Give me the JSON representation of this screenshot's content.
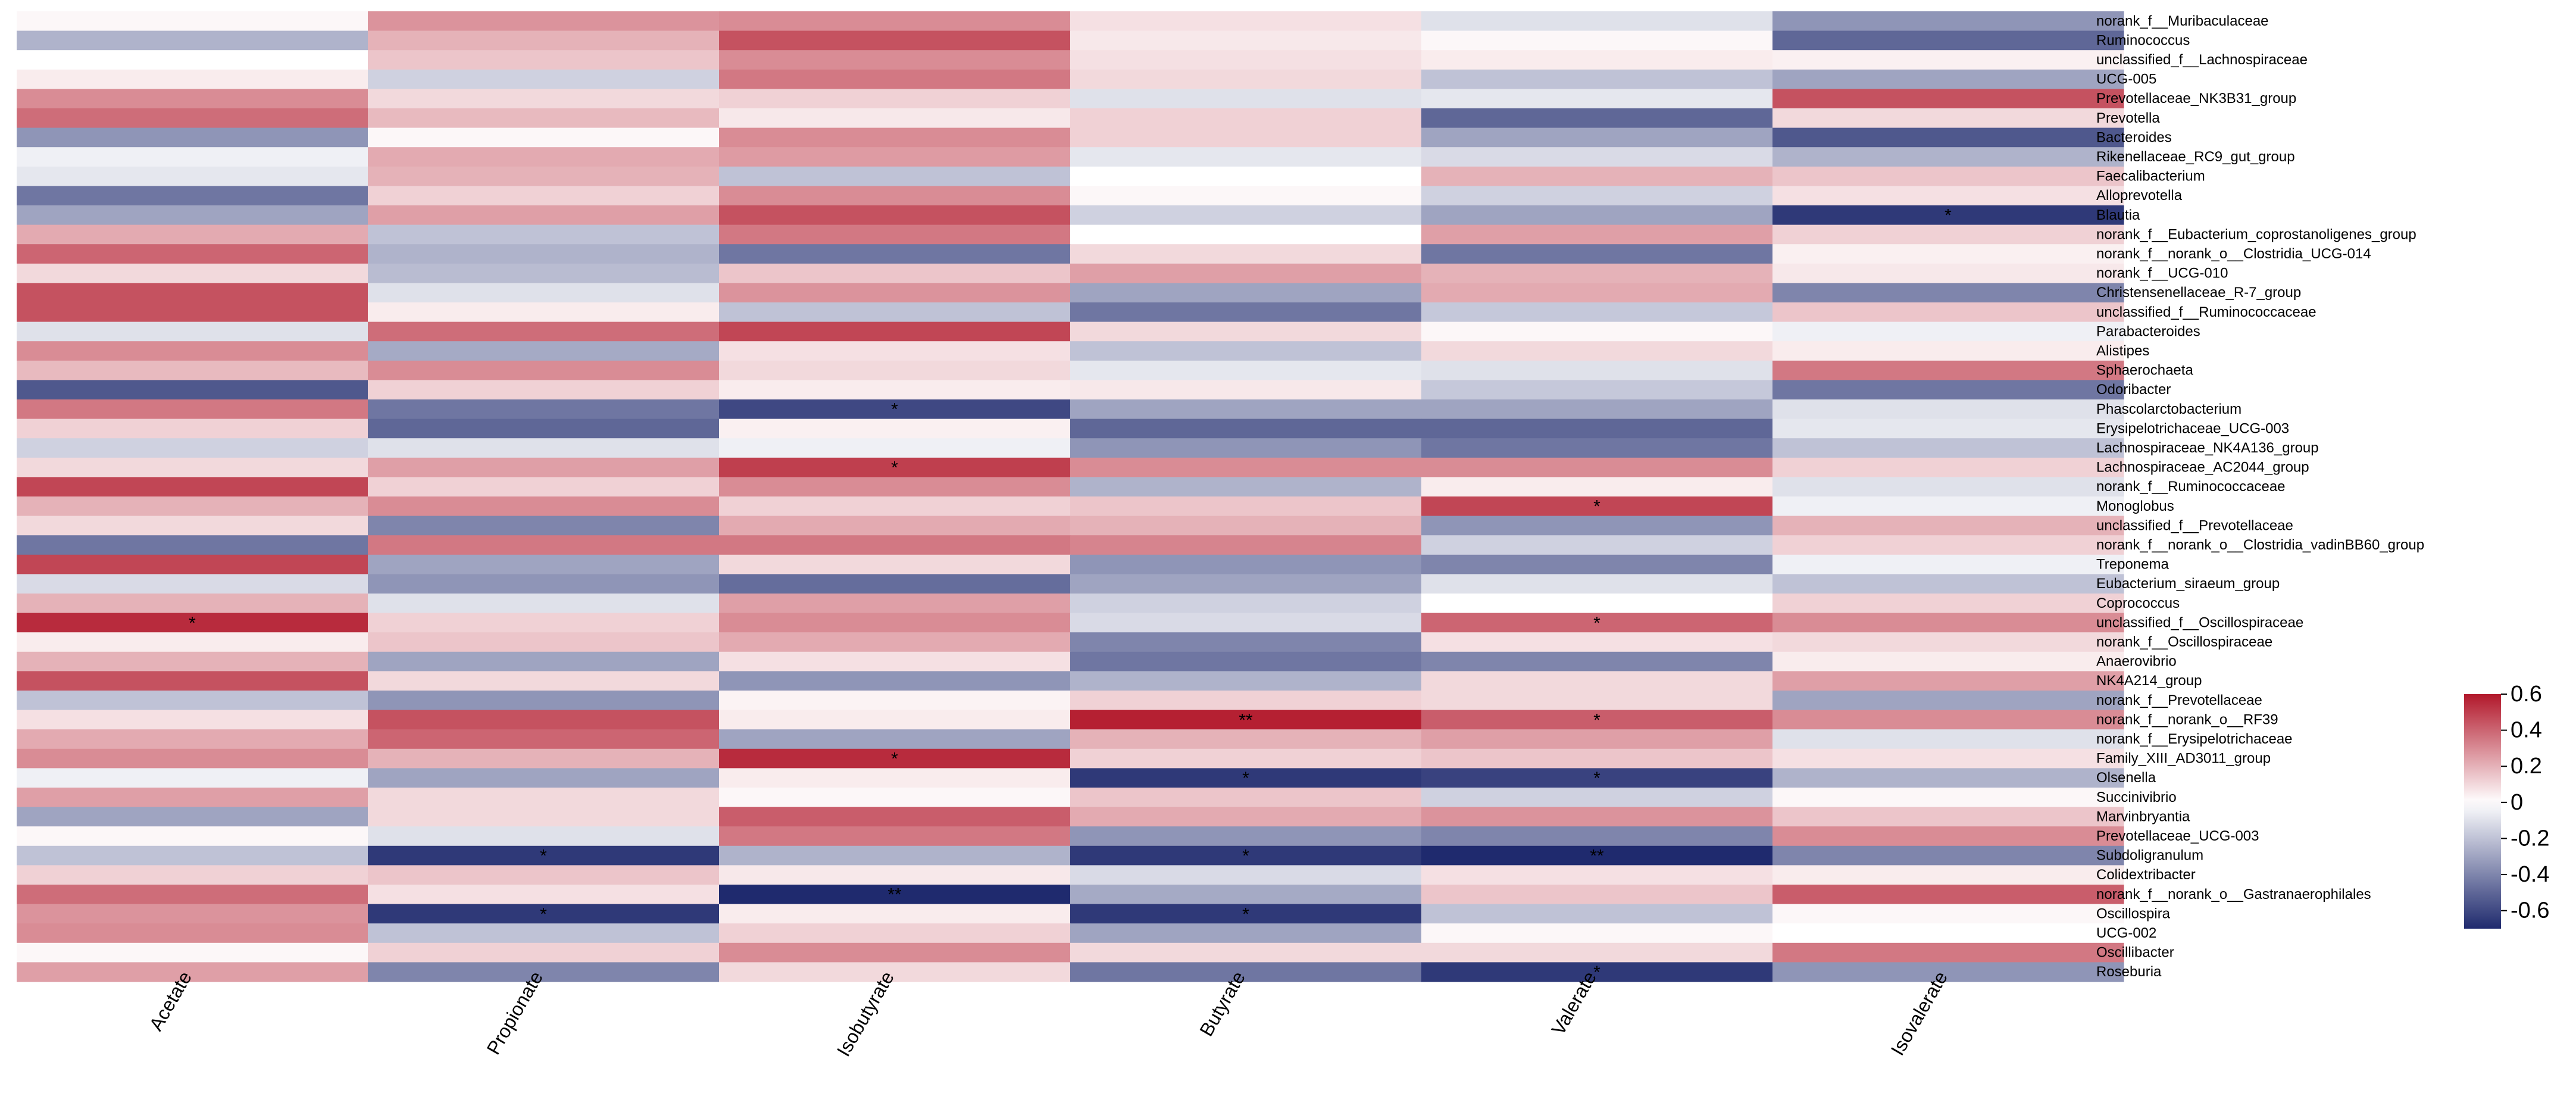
{
  "chart_data": {
    "type": "heatmap",
    "title": "",
    "xlabel": "",
    "ylabel": "",
    "colorbar": {
      "min": -0.7,
      "max": 0.6,
      "ticks": [
        0.6,
        0.4,
        0.2,
        0,
        -0.2,
        -0.4,
        -0.6
      ],
      "tick_labels": [
        "0.6",
        "0.4",
        "0.2",
        "0",
        "-0.2",
        "-0.4",
        "-0.6"
      ],
      "low_color": "#1f2a6e",
      "mid_color": "#ffffff",
      "high_color": "#b2182b"
    },
    "columns": [
      "Acetate",
      "Propionate",
      "Isobutyrate",
      "Butyrate",
      "Valerate",
      "Isovalerate"
    ],
    "rows": [
      "norank_f__Muribaculaceae",
      "Ruminococcus",
      "unclassified_f__Lachnospiraceae",
      "UCG-005",
      "Prevotellaceae_NK3B31_group",
      "Prevotella",
      "Bacteroides",
      "Rikenellaceae_RC9_gut_group",
      "Faecalibacterium",
      "Alloprevotella",
      "Blautia",
      "norank_f__Eubacterium_coprostanoligenes_group",
      "norank_f__norank_o__Clostridia_UCG-014",
      "norank_f__UCG-010",
      "Christensenellaceae_R-7_group",
      "unclassified_f__Ruminococcaceae",
      "Parabacteroides",
      "Alistipes",
      "Sphaerochaeta",
      "Odoribacter",
      "Phascolarctobacterium",
      "Erysipelotrichaceae_UCG-003",
      "Lachnospiraceae_NK4A136_group",
      "Lachnospiraceae_AC2044_group",
      "norank_f__Ruminococcaceae",
      "Monoglobus",
      "unclassified_f__Prevotellaceae",
      "norank_f__norank_o__Clostridia_vadinBB60_group",
      "Treponema",
      "Eubacterium_siraeum_group",
      "Coprococcus",
      "unclassified_f__Oscillospiraceae",
      "norank_f__Oscillospiraceae",
      "Anaerovibrio",
      "NK4A214_group",
      "norank_f__Prevotellaceae",
      "norank_f__norank_o__RF39",
      "norank_f__Erysipelotrichaceae",
      "Family_XIII_AD3011_group",
      "Olsenella",
      "Succinivibrio",
      "Marvinbryantia",
      "Prevotellaceae_UCG-003",
      "Subdoligranulum",
      "Colidextribacter",
      "norank_f__norank_o__Gastranaerophilales",
      "Oscillospira",
      "UCG-002",
      "Oscillibacter",
      "Roseburia"
    ],
    "values": [
      [
        0.02,
        0.28,
        0.3,
        0.08,
        -0.1,
        -0.35
      ],
      [
        -0.25,
        0.2,
        0.45,
        0.06,
        0.02,
        -0.5
      ],
      [
        0.0,
        0.15,
        0.3,
        0.08,
        0.05,
        0.04
      ],
      [
        0.05,
        -0.15,
        0.35,
        0.1,
        -0.2,
        -0.3
      ],
      [
        0.3,
        0.1,
        0.12,
        -0.1,
        -0.08,
        0.45
      ],
      [
        0.38,
        0.18,
        0.06,
        0.12,
        -0.5,
        0.1
      ],
      [
        -0.35,
        0.02,
        0.3,
        0.12,
        -0.3,
        -0.55
      ],
      [
        -0.05,
        0.22,
        0.26,
        -0.08,
        -0.12,
        -0.25
      ],
      [
        -0.08,
        0.2,
        -0.2,
        0.0,
        0.2,
        0.15
      ],
      [
        -0.45,
        0.12,
        0.3,
        0.02,
        -0.15,
        0.08
      ],
      [
        -0.3,
        0.25,
        0.45,
        -0.15,
        -0.3,
        -0.65
      ],
      [
        0.22,
        -0.2,
        0.35,
        0.0,
        0.25,
        0.12
      ],
      [
        0.4,
        -0.25,
        -0.45,
        0.1,
        -0.45,
        0.04
      ],
      [
        0.1,
        -0.22,
        0.15,
        0.25,
        0.2,
        0.06
      ],
      [
        0.45,
        -0.1,
        0.28,
        -0.3,
        0.22,
        -0.4
      ],
      [
        0.45,
        0.05,
        -0.2,
        -0.45,
        -0.18,
        0.15
      ],
      [
        -0.1,
        0.38,
        0.48,
        0.1,
        0.02,
        -0.05
      ],
      [
        0.3,
        -0.28,
        0.08,
        -0.2,
        0.1,
        0.05
      ],
      [
        0.18,
        0.3,
        0.1,
        -0.08,
        -0.1,
        0.35
      ],
      [
        -0.55,
        0.12,
        0.05,
        0.06,
        -0.18,
        -0.45
      ],
      [
        0.35,
        -0.45,
        -0.6,
        -0.3,
        -0.3,
        -0.1
      ],
      [
        0.12,
        -0.5,
        0.04,
        -0.5,
        -0.5,
        -0.08
      ],
      [
        -0.15,
        -0.1,
        -0.05,
        -0.35,
        -0.45,
        -0.2
      ],
      [
        0.1,
        0.25,
        0.5,
        0.3,
        0.3,
        0.12
      ],
      [
        0.48,
        0.12,
        0.3,
        -0.25,
        0.05,
        -0.1
      ],
      [
        0.2,
        0.3,
        0.12,
        0.15,
        0.48,
        -0.05
      ],
      [
        0.1,
        -0.4,
        0.22,
        0.2,
        -0.35,
        0.2
      ],
      [
        -0.45,
        0.35,
        0.35,
        0.32,
        -0.15,
        0.12
      ],
      [
        0.48,
        -0.3,
        0.1,
        -0.35,
        -0.4,
        -0.05
      ],
      [
        -0.12,
        -0.35,
        -0.48,
        -0.3,
        -0.1,
        -0.2
      ],
      [
        0.2,
        -0.1,
        0.25,
        -0.15,
        0.0,
        0.12
      ],
      [
        0.55,
        0.12,
        0.3,
        -0.12,
        0.4,
        0.3
      ],
      [
        0.05,
        0.15,
        0.22,
        -0.4,
        0.08,
        0.1
      ],
      [
        0.2,
        -0.3,
        0.08,
        -0.45,
        -0.4,
        0.05
      ],
      [
        0.45,
        0.1,
        -0.35,
        -0.25,
        0.1,
        0.25
      ],
      [
        -0.2,
        -0.35,
        0.03,
        0.12,
        0.1,
        -0.3
      ],
      [
        0.08,
        0.45,
        0.05,
        0.58,
        0.42,
        0.3
      ],
      [
        0.22,
        0.4,
        -0.3,
        0.2,
        0.25,
        -0.1
      ],
      [
        0.3,
        0.2,
        0.55,
        0.12,
        0.15,
        0.08
      ],
      [
        -0.05,
        -0.3,
        0.05,
        -0.65,
        -0.62,
        -0.25
      ],
      [
        0.25,
        0.1,
        0.02,
        0.15,
        -0.15,
        0.02
      ],
      [
        -0.3,
        0.1,
        0.42,
        0.22,
        0.28,
        0.15
      ],
      [
        0.02,
        -0.1,
        0.35,
        -0.35,
        -0.4,
        0.3
      ],
      [
        -0.2,
        -0.65,
        -0.25,
        -0.65,
        -0.7,
        -0.4
      ],
      [
        0.12,
        0.15,
        0.06,
        -0.12,
        0.08,
        0.05
      ],
      [
        0.38,
        0.08,
        -0.7,
        -0.28,
        0.15,
        0.42
      ],
      [
        0.28,
        -0.65,
        0.05,
        -0.65,
        -0.2,
        0.02
      ],
      [
        0.3,
        -0.2,
        0.12,
        -0.3,
        0.02,
        0.0
      ],
      [
        0.02,
        0.12,
        0.3,
        0.1,
        0.1,
        0.35
      ],
      [
        0.25,
        -0.4,
        0.1,
        -0.45,
        -0.65,
        -0.35
      ]
    ],
    "annotations": [
      {
        "row": 10,
        "col": 5,
        "text": "*"
      },
      {
        "row": 20,
        "col": 2,
        "text": "*"
      },
      {
        "row": 23,
        "col": 2,
        "text": "*"
      },
      {
        "row": 25,
        "col": 4,
        "text": "*"
      },
      {
        "row": 31,
        "col": 0,
        "text": "*"
      },
      {
        "row": 31,
        "col": 4,
        "text": "*"
      },
      {
        "row": 36,
        "col": 3,
        "text": "**"
      },
      {
        "row": 36,
        "col": 4,
        "text": "*"
      },
      {
        "row": 38,
        "col": 2,
        "text": "*"
      },
      {
        "row": 39,
        "col": 3,
        "text": "*"
      },
      {
        "row": 39,
        "col": 4,
        "text": "*"
      },
      {
        "row": 43,
        "col": 1,
        "text": "*"
      },
      {
        "row": 43,
        "col": 3,
        "text": "*"
      },
      {
        "row": 43,
        "col": 4,
        "text": "**"
      },
      {
        "row": 45,
        "col": 2,
        "text": "**"
      },
      {
        "row": 46,
        "col": 1,
        "text": "*"
      },
      {
        "row": 46,
        "col": 3,
        "text": "*"
      },
      {
        "row": 49,
        "col": 4,
        "text": "*"
      }
    ]
  }
}
